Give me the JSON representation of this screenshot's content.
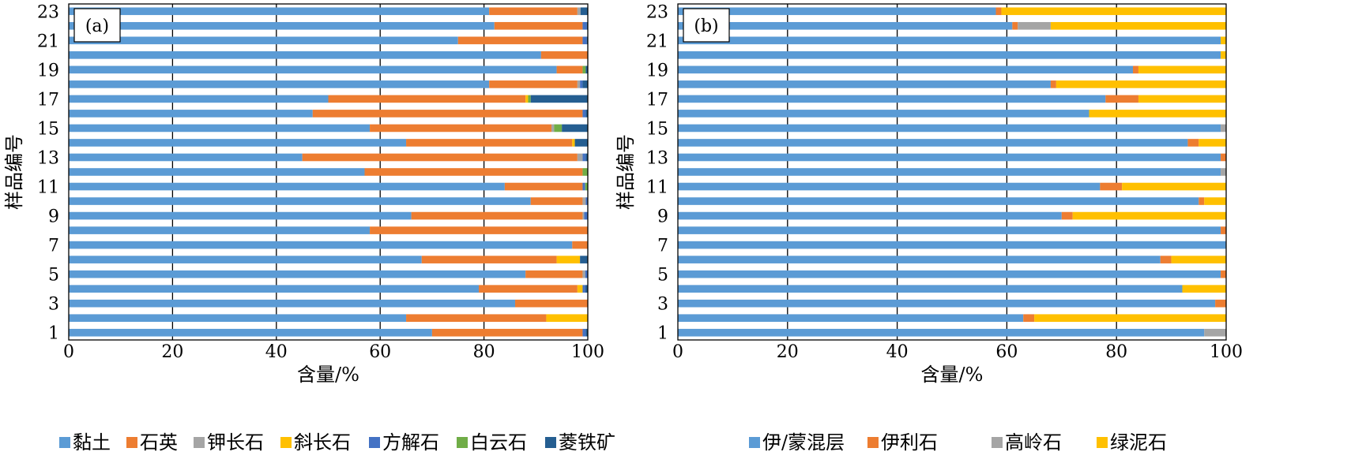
{
  "chart_data": [
    {
      "type": "stacked-bar-horizontal",
      "panel_label": "(a)",
      "xlabel": "含量/%",
      "ylabel": "样品编号",
      "xlim": [
        0,
        100
      ],
      "x_ticks": [
        "0",
        "20",
        "40",
        "60",
        "80",
        "100"
      ],
      "y_tick_labels": [
        "1",
        "3",
        "5",
        "7",
        "9",
        "11",
        "13",
        "15",
        "17",
        "19",
        "21",
        "23"
      ],
      "grid": "vertical",
      "legend_position": "bottom",
      "categories": [
        "1",
        "2",
        "3",
        "4",
        "5",
        "6",
        "7",
        "8",
        "9",
        "10",
        "11",
        "12",
        "13",
        "14",
        "15",
        "16",
        "17",
        "18",
        "19",
        "20",
        "21",
        "22",
        "23"
      ],
      "series": [
        {
          "name": "黏土",
          "color": "#5B9BD5",
          "values": [
            70,
            65,
            86,
            79,
            88,
            68,
            97,
            58,
            66,
            89,
            84,
            57,
            45,
            65,
            58,
            47,
            50,
            81,
            94,
            91,
            75,
            82,
            81
          ]
        },
        {
          "name": "石英",
          "color": "#ED7D31",
          "values": [
            29,
            27,
            14,
            19,
            11,
            26,
            3,
            42,
            33,
            10,
            15,
            42,
            53,
            32,
            35,
            52,
            38,
            17,
            5,
            9,
            24,
            17,
            17
          ]
        },
        {
          "name": "钾长石",
          "color": "#A5A5A5",
          "values": [
            0,
            0,
            0,
            0,
            0.5,
            0,
            0,
            0,
            0.3,
            0.6,
            0,
            0,
            1,
            0,
            0.5,
            0,
            0,
            0.5,
            0,
            0,
            0,
            0,
            0.6
          ]
        },
        {
          "name": "斜长石",
          "color": "#FFC000",
          "values": [
            0,
            8,
            0,
            1,
            0,
            4.5,
            0,
            0,
            0,
            0,
            0,
            0,
            0,
            0.5,
            0,
            0,
            0.5,
            0,
            0,
            0,
            0,
            0,
            0
          ]
        },
        {
          "name": "方解石",
          "color": "#4472C4",
          "values": [
            0.6,
            0,
            0,
            0.5,
            0.5,
            0,
            0.5,
            0,
            0.7,
            0.4,
            0.5,
            0,
            0.6,
            0,
            0,
            0.6,
            0,
            0.5,
            0,
            0,
            0.8,
            0.8,
            0
          ]
        },
        {
          "name": "白云石",
          "color": "#70AD47",
          "values": [
            0,
            0,
            0,
            0,
            0,
            0,
            0,
            0,
            0,
            0,
            0.5,
            1,
            0,
            0,
            1.5,
            0,
            0.5,
            0,
            0.6,
            0,
            0,
            0,
            0
          ]
        },
        {
          "name": "菱铁矿",
          "color": "#255E91",
          "values": [
            0.4,
            0,
            0,
            0.5,
            0,
            1.5,
            0,
            0,
            0,
            0,
            0,
            0,
            0.4,
            3.5,
            5,
            0.4,
            11,
            1,
            0.4,
            0,
            0.2,
            0.2,
            1.4
          ]
        }
      ]
    },
    {
      "type": "stacked-bar-horizontal",
      "panel_label": "(b)",
      "xlabel": "含量/%",
      "ylabel": "样品编号",
      "xlim": [
        0,
        100
      ],
      "x_ticks": [
        "0",
        "20",
        "40",
        "60",
        "80",
        "100"
      ],
      "y_tick_labels": [
        "1",
        "3",
        "5",
        "7",
        "9",
        "11",
        "13",
        "15",
        "17",
        "19",
        "21",
        "23"
      ],
      "grid": "vertical",
      "legend_position": "bottom",
      "categories": [
        "1",
        "2",
        "3",
        "4",
        "5",
        "6",
        "7",
        "8",
        "9",
        "10",
        "11",
        "12",
        "13",
        "14",
        "15",
        "16",
        "17",
        "18",
        "19",
        "20",
        "21",
        "22",
        "23"
      ],
      "series": [
        {
          "name": "伊/蒙混层",
          "color": "#5B9BD5",
          "values": [
            96,
            63,
            98,
            92,
            99,
            88,
            100,
            99,
            70,
            95,
            77,
            99,
            99,
            93,
            99,
            75,
            78,
            68,
            83,
            99,
            99,
            61,
            58
          ]
        },
        {
          "name": "伊利石",
          "color": "#ED7D31",
          "values": [
            0,
            2,
            2,
            0,
            1,
            2,
            0,
            1,
            2,
            1,
            4,
            0,
            1,
            2,
            0,
            0,
            6,
            1,
            1,
            0,
            0,
            1,
            1
          ]
        },
        {
          "name": "高岭石",
          "color": "#A5A5A5",
          "values": [
            4,
            0,
            0,
            0,
            0,
            0,
            0,
            0,
            0,
            0,
            0,
            1,
            0,
            0,
            1,
            0,
            0,
            0,
            0,
            0,
            0,
            6,
            0
          ]
        },
        {
          "name": "绿泥石",
          "color": "#FFC000",
          "values": [
            0,
            35,
            0,
            8,
            0,
            10,
            0,
            0,
            28,
            4,
            19,
            0,
            0,
            5,
            0,
            25,
            16,
            31,
            16,
            1,
            1,
            32,
            41
          ]
        }
      ]
    }
  ]
}
